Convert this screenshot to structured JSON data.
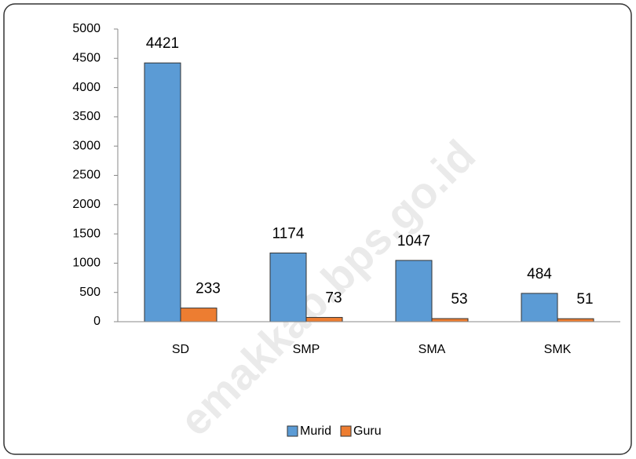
{
  "chart_data": {
    "type": "bar",
    "categories": [
      "SD",
      "SMP",
      "SMA",
      "SMK"
    ],
    "series": [
      {
        "name": "Murid",
        "color": "#5b9bd5",
        "values": [
          4421,
          1174,
          1047,
          484
        ]
      },
      {
        "name": "Guru",
        "color": "#ed7d31",
        "values": [
          233,
          73,
          53,
          51
        ]
      }
    ],
    "ylim": [
      0,
      5000
    ],
    "yticks": [
      0,
      500,
      1000,
      1500,
      2000,
      2500,
      3000,
      3500,
      4000,
      4500,
      5000
    ],
    "grid": false,
    "legend": "bottom",
    "watermark": "emakkab.bps.go.id"
  }
}
